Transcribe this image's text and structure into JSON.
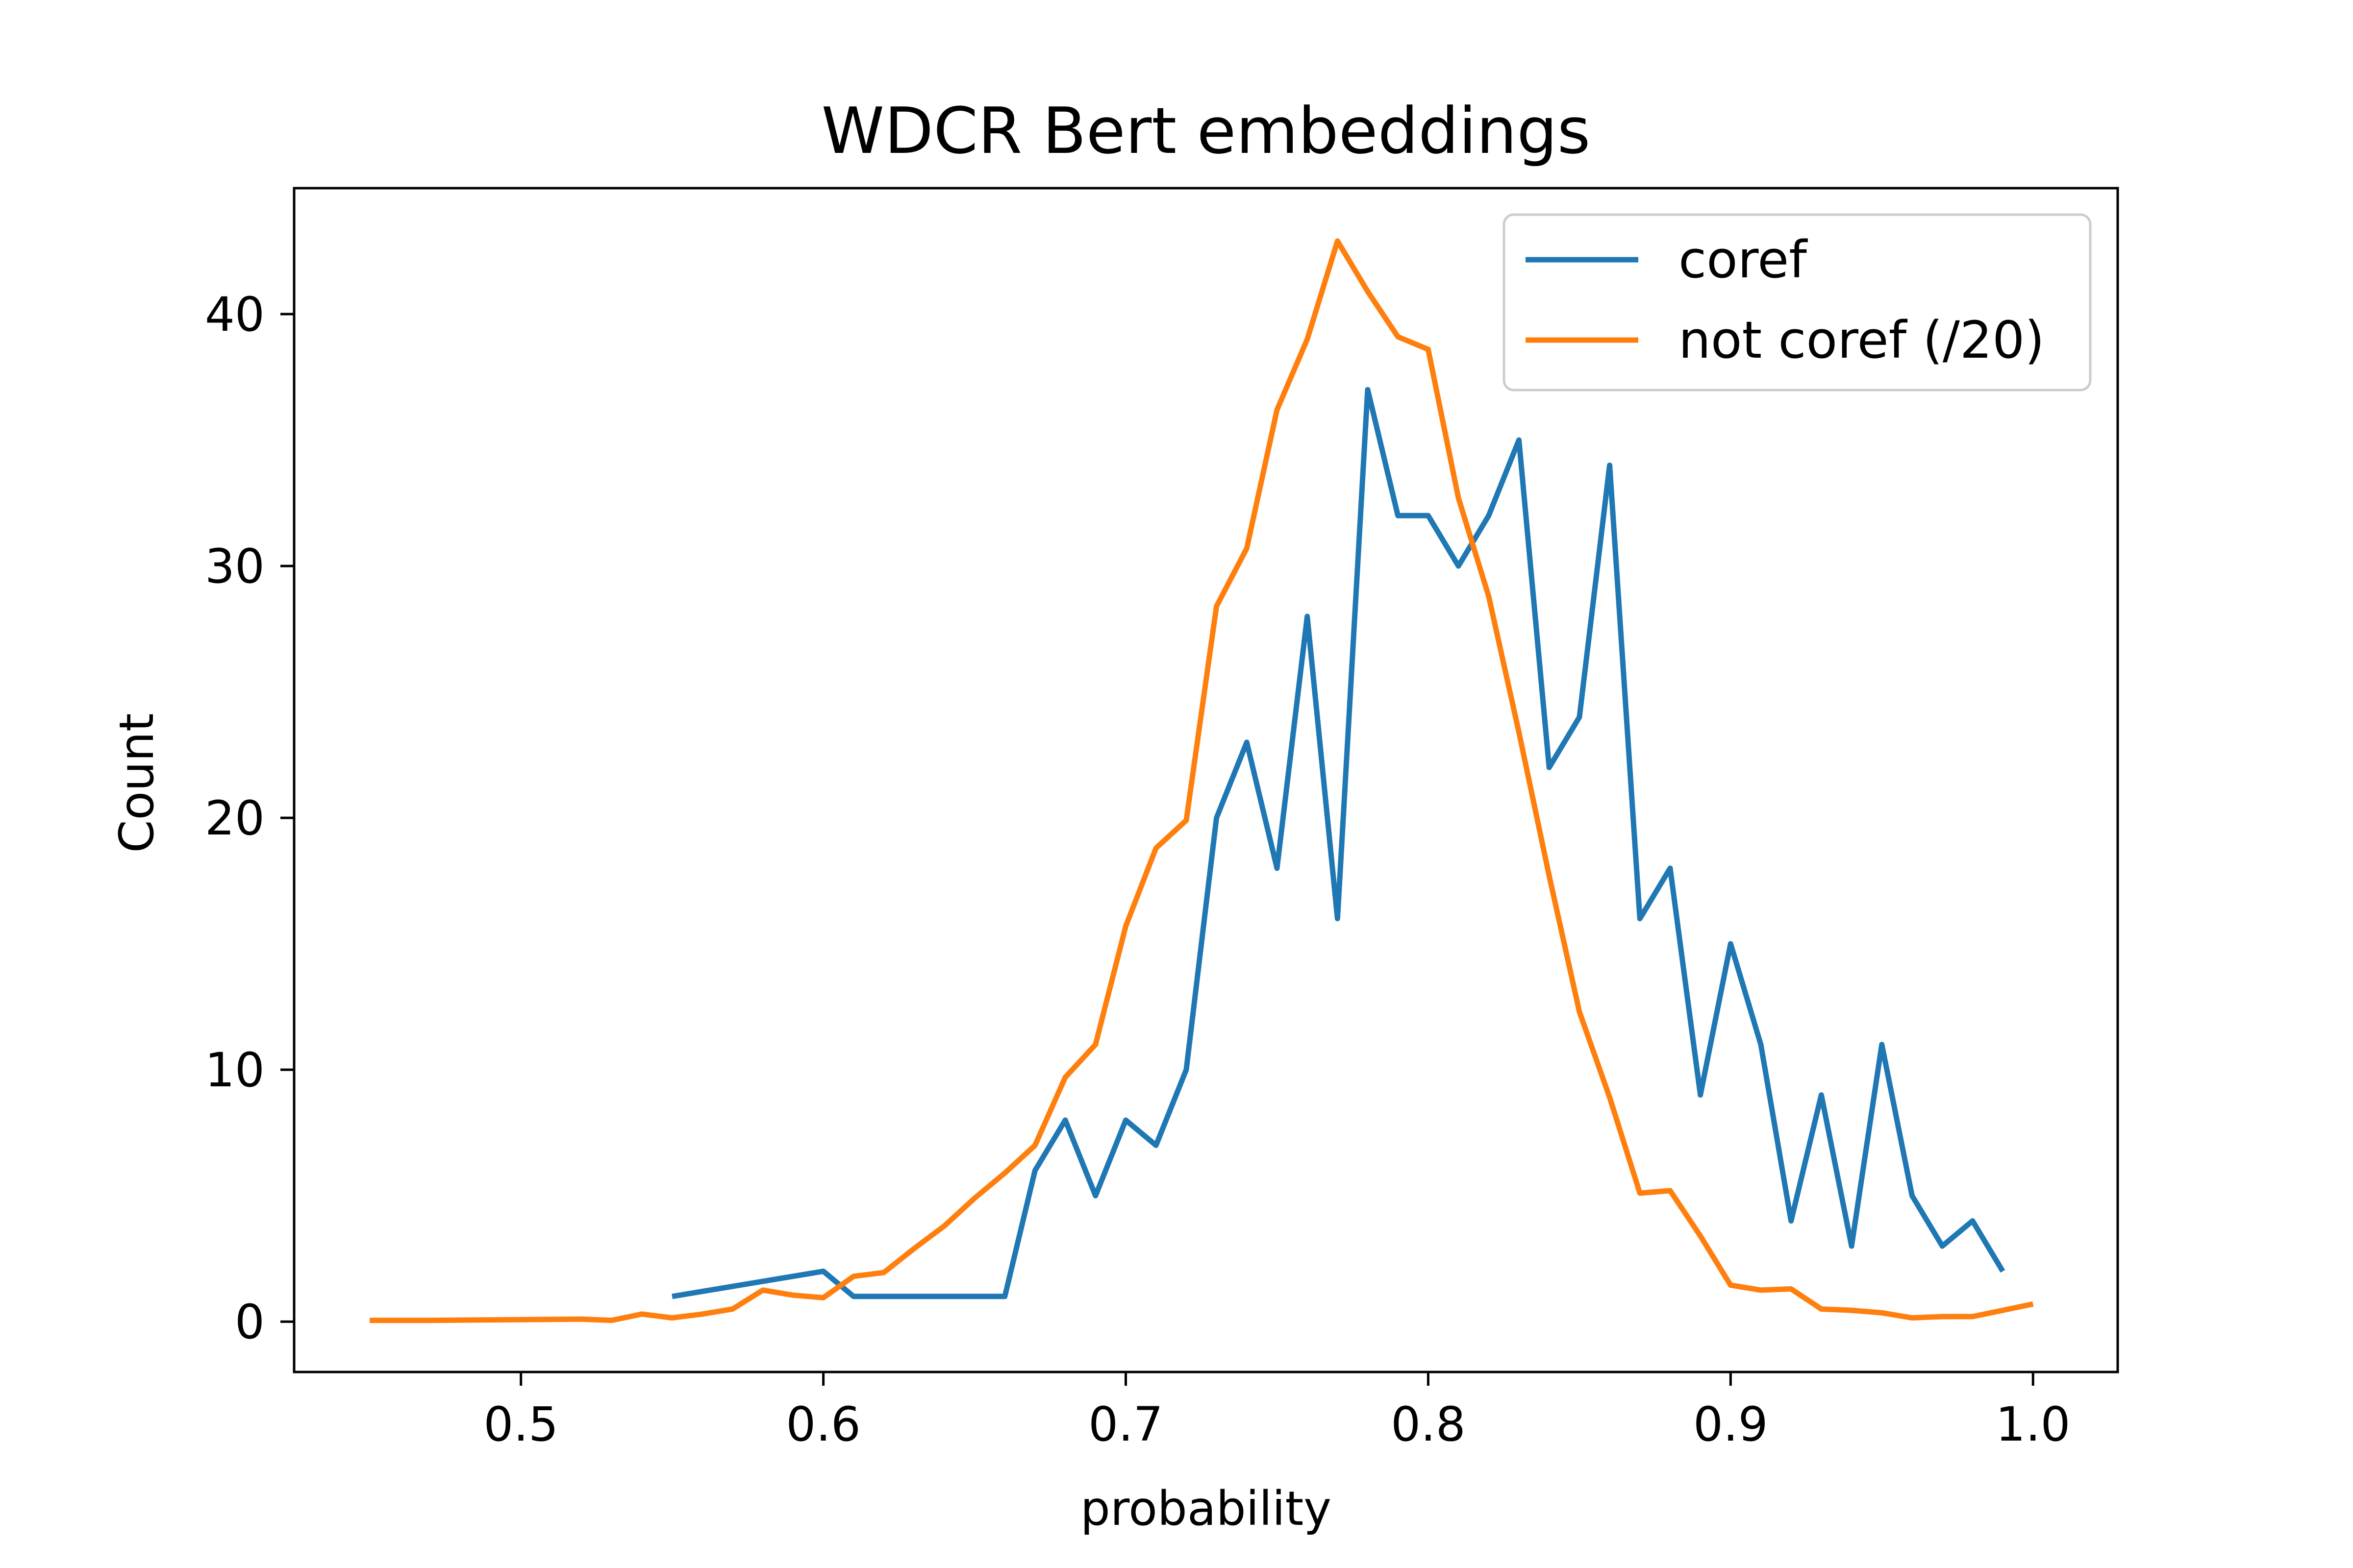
{
  "chart_data": {
    "type": "line",
    "title": "WDCR Bert embeddings",
    "xlabel": "probability",
    "ylabel": "Count",
    "xlim": [
      0.425,
      1.028
    ],
    "ylim": [
      -2.0,
      45.0
    ],
    "xticks": [
      0.5,
      0.6,
      0.7,
      0.8,
      0.9,
      1.0
    ],
    "xtick_labels": [
      "0.5",
      "0.6",
      "0.7",
      "0.8",
      "0.9",
      "1.0"
    ],
    "yticks": [
      0,
      10,
      20,
      30,
      40
    ],
    "ytick_labels": [
      "0",
      "10",
      "20",
      "30",
      "40"
    ],
    "grid": false,
    "legend_position": "upper right",
    "series": [
      {
        "name": "coref",
        "color": "#1f77b4",
        "x": [
          0.55,
          0.6,
          0.61,
          0.62,
          0.63,
          0.64,
          0.65,
          0.66,
          0.67,
          0.68,
          0.69,
          0.7,
          0.71,
          0.72,
          0.73,
          0.74,
          0.75,
          0.76,
          0.77,
          0.78,
          0.79,
          0.8,
          0.81,
          0.82,
          0.83,
          0.84,
          0.85,
          0.86,
          0.87,
          0.88,
          0.89,
          0.9,
          0.91,
          0.92,
          0.93,
          0.94,
          0.95,
          0.96,
          0.97,
          0.98,
          0.99
        ],
        "y": [
          1,
          2,
          1,
          1,
          1,
          1,
          1,
          1,
          6,
          8,
          5,
          8,
          7,
          10,
          20,
          23,
          18,
          28,
          16,
          37,
          32,
          32,
          30,
          32,
          35,
          22,
          24,
          34,
          16,
          18,
          9,
          15,
          11,
          4,
          9,
          3,
          11,
          5,
          3,
          4,
          2
        ]
      },
      {
        "name": "not coref (/20)",
        "color": "#ff7f0e",
        "x": [
          0.45,
          0.47,
          0.52,
          0.53,
          0.54,
          0.55,
          0.56,
          0.57,
          0.58,
          0.59,
          0.6,
          0.61,
          0.62,
          0.63,
          0.64,
          0.65,
          0.66,
          0.67,
          0.68,
          0.69,
          0.7,
          0.71,
          0.72,
          0.73,
          0.74,
          0.75,
          0.76,
          0.77,
          0.78,
          0.79,
          0.8,
          0.81,
          0.82,
          0.83,
          0.84,
          0.85,
          0.86,
          0.87,
          0.88,
          0.89,
          0.9,
          0.91,
          0.92,
          0.93,
          0.94,
          0.95,
          0.96,
          0.97,
          0.98,
          0.99,
          1.0
        ],
        "y": [
          0.05,
          0.05,
          0.1,
          0.05,
          0.3,
          0.15,
          0.3,
          0.5,
          1.25,
          1.05,
          0.95,
          1.8,
          1.95,
          2.9,
          3.8,
          4.9,
          5.9,
          7.0,
          9.7,
          11.0,
          15.7,
          18.8,
          19.9,
          28.4,
          30.7,
          36.2,
          39.0,
          42.9,
          40.9,
          39.1,
          38.6,
          32.7,
          28.8,
          23.4,
          17.7,
          12.3,
          8.9,
          5.1,
          5.2,
          3.4,
          1.45,
          1.25,
          1.3,
          0.5,
          0.45,
          0.35,
          0.15,
          0.2,
          0.2,
          0.45,
          0.7
        ]
      }
    ]
  }
}
